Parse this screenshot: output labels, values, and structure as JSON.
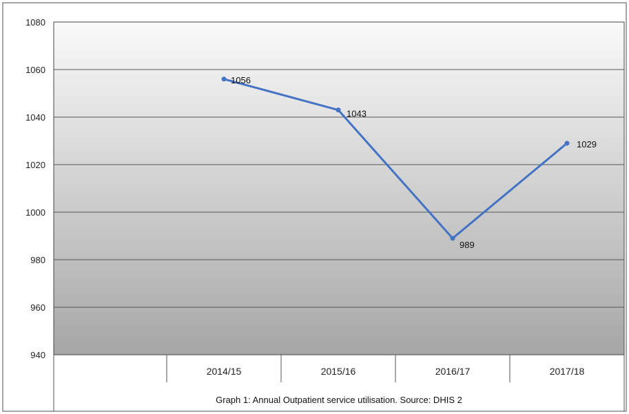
{
  "chart_data": {
    "type": "line",
    "categories": [
      "2014/15",
      "2015/16",
      "2016/17",
      "2017/18"
    ],
    "values": [
      1056,
      1043,
      989,
      1029
    ],
    "data_labels": [
      "1056",
      "1043",
      "989",
      "1029"
    ],
    "yticks": [
      "1080",
      "1060",
      "1040",
      "1020",
      "1000",
      "980",
      "960",
      "940"
    ],
    "ylim": [
      940,
      1080
    ],
    "grid": true,
    "legend": "none",
    "caption": "Graph 1: Annual Outpatient service utilisation. Source: DHIS 2",
    "colors": {
      "line": "#4472c4",
      "plot_top": "#fafafa",
      "plot_bottom": "#a6a6a6",
      "grid": "#555555"
    }
  }
}
